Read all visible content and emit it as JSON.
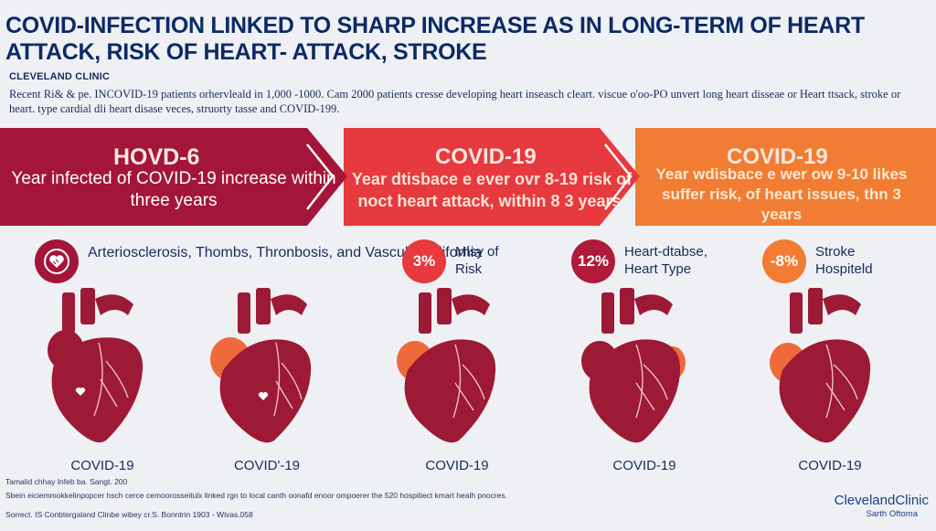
{
  "title": "COVID-INFECTION LINKED TO SHARP INCREASE AS IN LONG-TERM OF HEART ATTACK, RISK OF HEART- ATTACK, STROKE",
  "organization": "CLEVELAND CLINIC",
  "intro": "Recent Ri& & pe. INCOVID-19 patients orhervleald in 1,000 -1000. Cam 2000 patients cresse developing heart inseasch cleart. viscue o'oo-PO unvert long heart disseae or Heart ttsack, stroke or heart. type cardial dli heart disase veces, struorty tasse and COVID-199.",
  "colors": {
    "band1": "#a3163a",
    "band2": "#e63a3e",
    "band3": "#f07d33",
    "heart_dark": "#9d1a37",
    "heart_orange": "#ef6a3a"
  },
  "bands": [
    {
      "heading": "HOVD-6",
      "text": "Year infected of COVID-19 increase within three years"
    },
    {
      "heading": "COVID-19",
      "text": "Year dtisbace e ever ovr 8-19 risk of noct heart attack, within 8 3 years."
    },
    {
      "heading": "COVID-19",
      "text": "Year wdisbace e wer ow 9-10 likes suffer risk, of heart issues, thn 3 years"
    }
  ],
  "stats": [
    {
      "icon": "heart-icon",
      "badge": "",
      "label": "Arteriosclerosis, Thombs, Thronbosis, and Vascular Cllifornia"
    },
    {
      "icon": "percent-badge",
      "badge": "3%",
      "label": "Mlsy of Risk"
    },
    {
      "icon": "percent-badge",
      "badge": "12%",
      "label": "Heart-dtabse, Heart Type"
    },
    {
      "icon": "percent-badge",
      "badge": "-8%",
      "label": "Stroke Hospiteld"
    }
  ],
  "hearts": [
    {
      "caption": "COVID-19"
    },
    {
      "caption": "COVID'-19"
    },
    {
      "caption": "COVID-19"
    },
    {
      "caption": "COVID-19"
    },
    {
      "caption": "COVID-19"
    }
  ],
  "footer": {
    "line1": "Tamalid chhay Infeb ba. Sangt. 200",
    "line2": "Sbein eiciemmokkelinpopcer hsch cerce cemoorosseitulx linked rgn to local canth oonafd enoor ompoerer the 520 hospitiect kmart healh pnocres.",
    "line3": "Sorrect. IS Conbtergaland Clinbe wibey cr.S. Bonntrin 1903 - Wivas.058",
    "brand": "ClevelandClinic",
    "brand_sub": "Sarth Oftoma"
  }
}
